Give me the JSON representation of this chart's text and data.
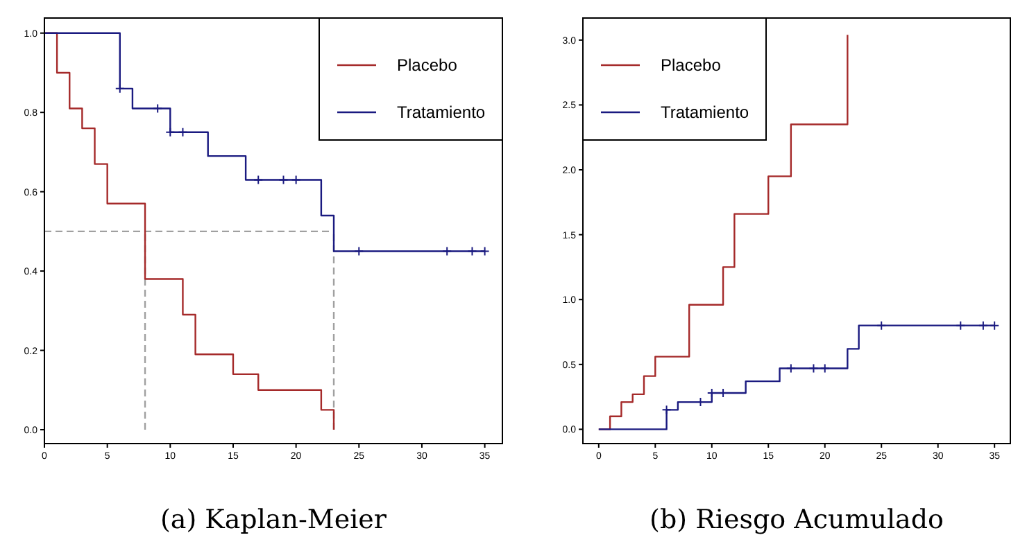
{
  "chart_data": [
    {
      "type": "step",
      "title": "(a) Kaplan-Meier",
      "legend": "top right",
      "xlim": [
        0,
        36.4
      ],
      "ylim": [
        -0.035,
        1.038
      ],
      "xticks": [
        0,
        5,
        10,
        15,
        20,
        25,
        30,
        35
      ],
      "yticks": [
        {
          "value": 0,
          "label": "0.0"
        },
        {
          "value": 0.2,
          "label": "0.2"
        },
        {
          "value": 0.4,
          "label": "0.4"
        },
        {
          "value": 0.6,
          "label": "0.6"
        },
        {
          "value": 0.8,
          "label": "0.8"
        },
        {
          "value": 1,
          "label": "1.0"
        }
      ],
      "ref_lines": [
        {
          "axis": "y",
          "value": 0.5,
          "color": "#a0a0a0",
          "line_style": "dashed"
        },
        {
          "axis": "x",
          "value": 8,
          "color": "#a0a0a0",
          "line_style": "dashed"
        },
        {
          "axis": "x",
          "value": 23,
          "color": "#a0a0a0",
          "line_style": "dashed"
        }
      ],
      "series": [
        {
          "name": "Placebo",
          "color": "#a52a2a",
          "x": [
            0,
            1,
            2,
            3,
            4,
            5,
            8,
            11,
            12,
            15,
            17,
            22,
            23
          ],
          "values": [
            1,
            0.9,
            0.81,
            0.76,
            0.67,
            0.57,
            0.38,
            0.29,
            0.19,
            0.14,
            0.1,
            0.05,
            0
          ]
        },
        {
          "name": "Tratamiento",
          "color": "#1a1a80",
          "x": [
            0,
            6,
            7,
            10,
            13,
            16,
            22,
            23,
            35
          ],
          "values": [
            1,
            0.86,
            0.81,
            0.75,
            0.69,
            0.63,
            0.54,
            0.45,
            0.45
          ]
        },
        {
          "type": "scatter",
          "marker": "cross",
          "color": "#1a1a80",
          "x": [
            6,
            9,
            10,
            11,
            17,
            19,
            20,
            25,
            32,
            34,
            35
          ],
          "values": [
            0.86,
            0.81,
            0.75,
            0.75,
            0.63,
            0.63,
            0.63,
            0.45,
            0.45,
            0.45,
            0.45
          ]
        }
      ]
    },
    {
      "type": "step",
      "title": "(b) Riesgo Acumulado",
      "legend": "top left",
      "xlim": [
        -1.4,
        36.4
      ],
      "ylim": [
        -0.11,
        3.17
      ],
      "xticks": [
        0,
        5,
        10,
        15,
        20,
        25,
        30,
        35
      ],
      "yticks": [
        {
          "value": 0,
          "label": "0.0"
        },
        {
          "value": 0.5,
          "label": "0.5"
        },
        {
          "value": 1,
          "label": "1.0"
        },
        {
          "value": 1.5,
          "label": "1.5"
        },
        {
          "value": 2,
          "label": "2.0"
        },
        {
          "value": 2.5,
          "label": "2.5"
        },
        {
          "value": 3,
          "label": "3.0"
        }
      ],
      "series": [
        {
          "name": "Placebo",
          "color": "#a52a2a",
          "x": [
            0,
            1,
            2,
            3,
            4,
            5,
            8,
            11,
            12,
            15,
            17,
            22
          ],
          "values": [
            0,
            0.1,
            0.21,
            0.27,
            0.41,
            0.56,
            0.96,
            1.25,
            1.66,
            1.95,
            2.35,
            3.04
          ]
        },
        {
          "name": "Tratamiento",
          "color": "#1a1a80",
          "x": [
            0,
            6,
            7,
            10,
            13,
            16,
            22,
            23,
            35
          ],
          "values": [
            0,
            0.15,
            0.21,
            0.28,
            0.37,
            0.47,
            0.62,
            0.8,
            0.8
          ]
        },
        {
          "type": "scatter",
          "marker": "cross",
          "color": "#1a1a80",
          "x": [
            6,
            9,
            10,
            11,
            17,
            19,
            20,
            25,
            32,
            34,
            35
          ],
          "values": [
            0.15,
            0.21,
            0.28,
            0.28,
            0.47,
            0.47,
            0.47,
            0.8,
            0.8,
            0.8,
            0.8
          ]
        }
      ]
    }
  ]
}
